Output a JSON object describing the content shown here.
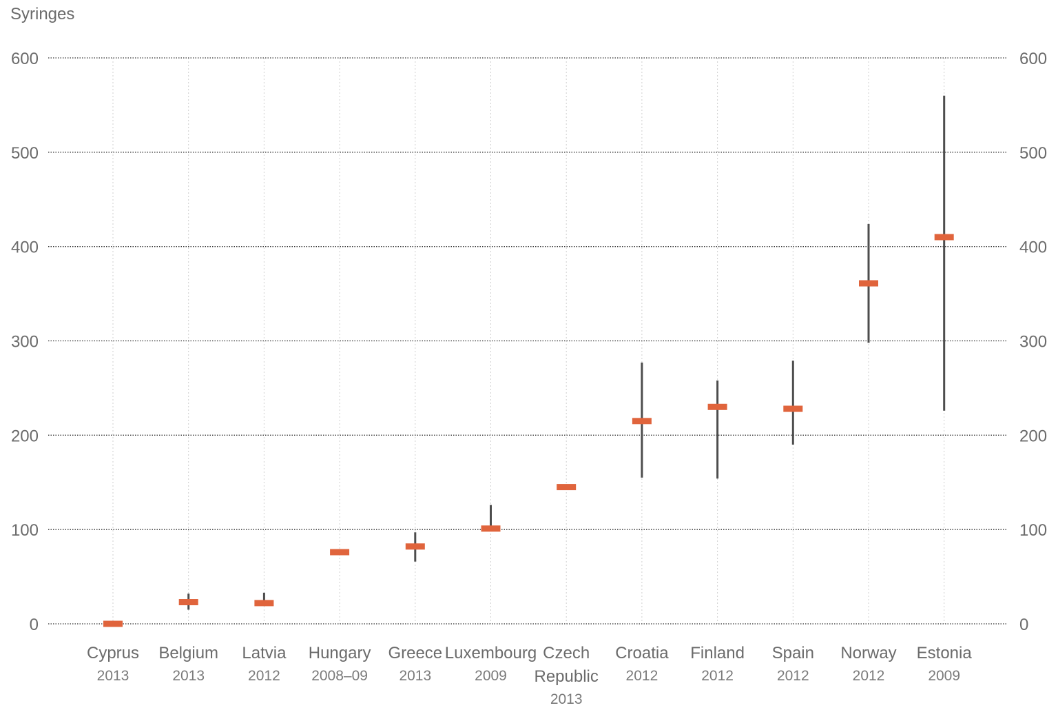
{
  "chart_data": {
    "type": "range",
    "unit_label": "Syringes",
    "ylim": [
      0,
      600
    ],
    "yticks": [
      0,
      100,
      200,
      300,
      400,
      500,
      600
    ],
    "grid": true,
    "colors": {
      "point": "#e0643c",
      "range": "#4d4d4d",
      "grid": "#333333",
      "vgrid": "#cfcfcf",
      "text": "#6b6b6b"
    },
    "categories": [
      {
        "name": [
          "Cyprus"
        ],
        "year": "2013"
      },
      {
        "name": [
          "Belgium"
        ],
        "year": "2013"
      },
      {
        "name": [
          "Latvia"
        ],
        "year": "2012"
      },
      {
        "name": [
          "Hungary"
        ],
        "year": "2008–09"
      },
      {
        "name": [
          "Greece"
        ],
        "year": "2013"
      },
      {
        "name": [
          "Luxembourg"
        ],
        "year": "2009"
      },
      {
        "name": [
          "Czech",
          "Republic"
        ],
        "year": "2013"
      },
      {
        "name": [
          "Croatia"
        ],
        "year": "2012"
      },
      {
        "name": [
          "Finland"
        ],
        "year": "2012"
      },
      {
        "name": [
          "Spain"
        ],
        "year": "2012"
      },
      {
        "name": [
          "Norway"
        ],
        "year": "2012"
      },
      {
        "name": [
          "Estonia"
        ],
        "year": "2009"
      }
    ],
    "values": [
      0,
      23,
      22,
      76,
      82,
      101,
      145,
      215,
      230,
      228,
      361,
      410
    ],
    "ranges": [
      null,
      [
        15,
        32
      ],
      [
        22,
        33
      ],
      null,
      [
        66,
        97
      ],
      [
        101,
        126
      ],
      null,
      [
        155,
        277
      ],
      [
        154,
        258
      ],
      [
        190,
        279
      ],
      [
        298,
        424
      ],
      [
        226,
        560
      ]
    ]
  }
}
